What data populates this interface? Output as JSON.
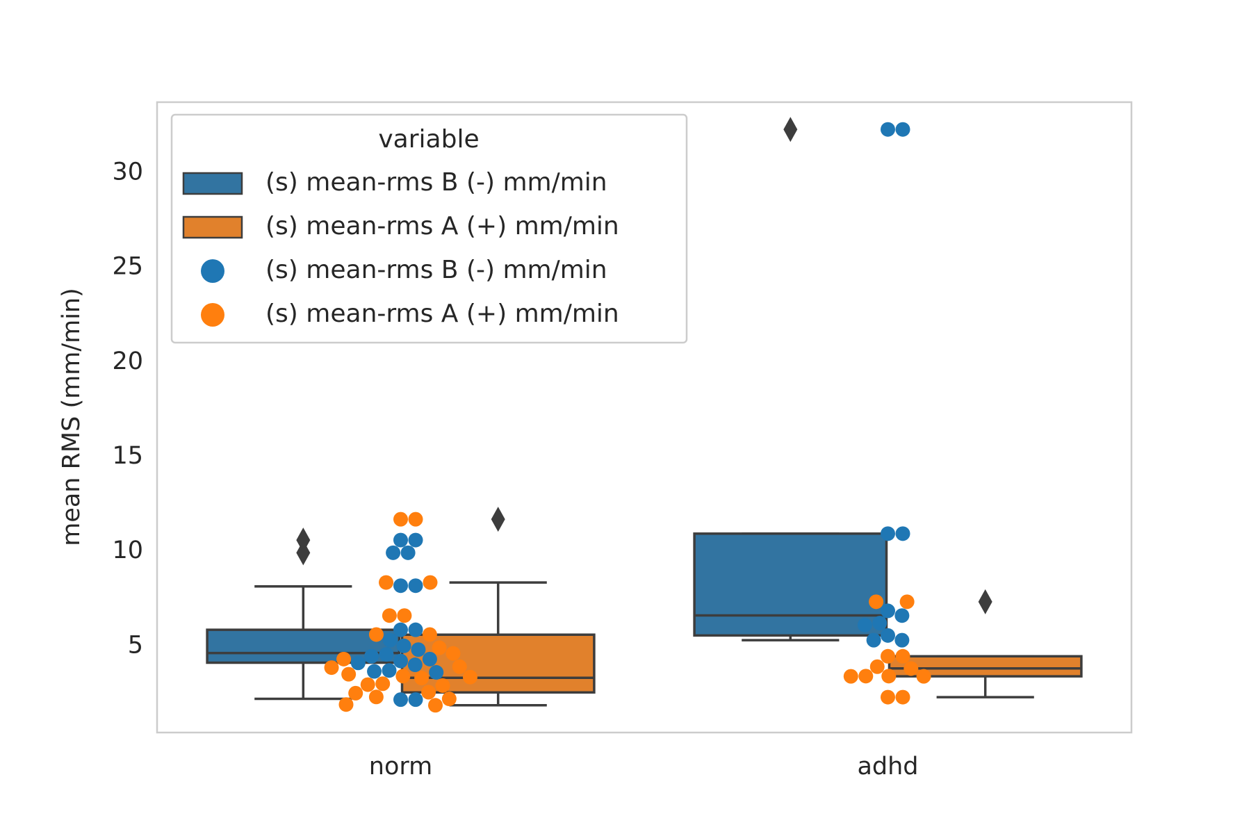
{
  "chart_data": {
    "type": "box",
    "y_label": "mean RMS (mm/min)",
    "categories": [
      "norm",
      "adhd"
    ],
    "ylim": [
      0.42,
      33.73
    ],
    "yticks": [
      5,
      10,
      15,
      20,
      25,
      30
    ],
    "grid": false,
    "legend_title": "variable",
    "legend_position": "upper left",
    "series": [
      {
        "name": "(s) mean-rms B (-) mm/min",
        "color": "#3274a1",
        "boxes": [
          {
            "whislo": 2.2,
            "q1": 4.11,
            "med": 4.62,
            "q3": 5.85,
            "whishi": 8.14,
            "fliers": [
              10.59,
              9.92
            ]
          },
          {
            "whislo": 5.3,
            "q1": 5.55,
            "med": 6.61,
            "q3": 10.93,
            "whishi": 10.93,
            "fliers": [
              32.29
            ]
          }
        ]
      },
      {
        "name": "(s) mean-rms A (+) mm/min",
        "color": "#e1812c",
        "boxes": [
          {
            "whislo": 1.86,
            "q1": 2.54,
            "med": 3.31,
            "q3": 5.59,
            "whishi": 8.35,
            "fliers": [
              11.69
            ]
          },
          {
            "whislo": 2.29,
            "q1": 3.39,
            "med": 3.81,
            "q3": 4.45,
            "whishi": 4.45,
            "fliers": [
              7.33
            ]
          }
        ]
      }
    ],
    "swarm": [
      {
        "name": "(s) mean-rms B (-) mm/min",
        "color": "#1f77b4",
        "values": [
          [
            10.59,
            10.59,
            9.92,
            9.92,
            8.18,
            8.18,
            5.85,
            5.85,
            5.3,
            5.0,
            4.8,
            4.55,
            4.45,
            4.3,
            4.2,
            4.1,
            4.0,
            3.7,
            3.65,
            3.6,
            2.16,
            2.16
          ],
          [
            32.29,
            32.29,
            10.93,
            10.93,
            6.85,
            6.6,
            6.2,
            6.1,
            5.55,
            5.3,
            5.3
          ]
        ]
      },
      {
        "name": "(s) mean-rms A (+) mm/min",
        "color": "#ff7f0e",
        "values": [
          [
            11.69,
            11.69,
            8.35,
            8.35,
            6.6,
            6.6,
            5.6,
            5.6,
            4.9,
            4.6,
            4.3,
            3.9,
            3.85,
            3.5,
            3.4,
            3.35,
            3.3,
            3.0,
            2.95,
            2.9,
            2.55,
            2.5,
            2.3,
            2.2,
            1.9,
            1.86
          ],
          [
            7.33,
            7.33,
            4.45,
            4.45,
            3.9,
            3.8,
            3.4,
            3.4,
            3.39,
            3.39,
            2.29,
            2.29
          ]
        ]
      }
    ]
  }
}
